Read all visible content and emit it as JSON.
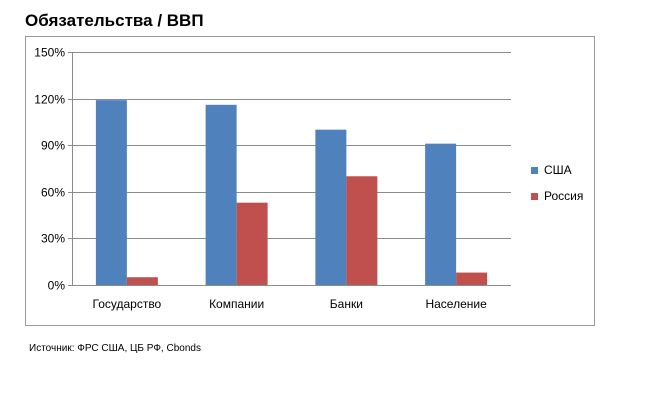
{
  "title": "Обязательства / ВВП",
  "source": "Источник: ФРС США, ЦБ РФ, Cbonds",
  "chart_data": {
    "type": "bar",
    "title": "Обязательства / ВВП",
    "categories": [
      "Государство",
      "Компании",
      "Банки",
      "Население"
    ],
    "series": [
      {
        "name": "США",
        "values": [
          119,
          116,
          100,
          91
        ],
        "color": "#4f81bd"
      },
      {
        "name": "Россия",
        "values": [
          5,
          53,
          70,
          8
        ],
        "color": "#c0504d"
      }
    ],
    "ylim": [
      0,
      150
    ],
    "yticks": [
      0,
      30,
      60,
      90,
      120,
      150
    ],
    "ytick_labels": [
      "0%",
      "30%",
      "60%",
      "90%",
      "120%",
      "150%"
    ],
    "grid": true,
    "legend": "right"
  }
}
